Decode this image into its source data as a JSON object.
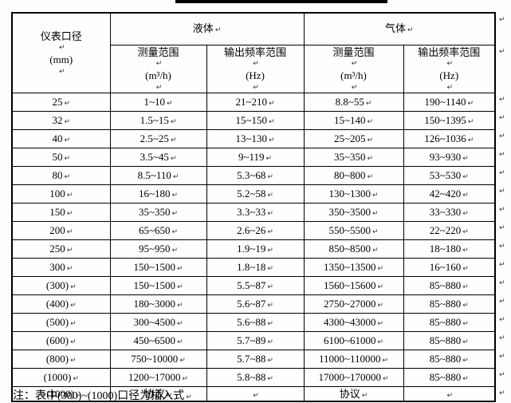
{
  "formatting_mark": "↵",
  "colors": {
    "border": "#000000",
    "text": "#000000",
    "mark_gray": "#333333",
    "title_rule": "#000000",
    "background": "#fefefe"
  },
  "table": {
    "header": {
      "diameter_label": "仪表口径",
      "diameter_unit": "(mm)",
      "liquid_group": "液体",
      "gas_group": "气体",
      "measure_label": "测量范围",
      "measure_unit": "(m³/h)",
      "freq_label": "输出频率范围",
      "freq_unit": "(Hz)"
    },
    "rows": [
      [
        "25",
        "1~10",
        "21~210",
        "8.8~55",
        "190~1140"
      ],
      [
        "32",
        "1.5~15",
        "15~150",
        "15~140",
        "150~1395"
      ],
      [
        "40",
        "2.5~25",
        "13~130",
        "25~205",
        "126~1036"
      ],
      [
        "50",
        "3.5~45",
        "9~119",
        "35~350",
        "93~930"
      ],
      [
        "80",
        "8.5~110",
        "5.3~68",
        "80~800",
        "53~530"
      ],
      [
        "100",
        "16~180",
        "5.2~58",
        "130~1300",
        "42~420"
      ],
      [
        "150",
        "35~350",
        "3.3~33",
        "350~3500",
        "33~330"
      ],
      [
        "200",
        "65~650",
        "2.6~26",
        "550~5500",
        "22~220"
      ],
      [
        "250",
        "95~950",
        "1.9~19",
        "850~8500",
        "18~180"
      ],
      [
        "300",
        "150~1500",
        "1.8~18",
        "1350~13500",
        "16~160"
      ],
      [
        "(300)",
        "150~1500",
        "5.5~87",
        "1560~15600",
        "85~880"
      ],
      [
        "(400)",
        "180~3000",
        "5.6~87",
        "2750~27000",
        "85~880"
      ],
      [
        "(500)",
        "300~4500",
        "5.6~88",
        "4300~43000",
        "85~880"
      ],
      [
        "(600)",
        "450~6500",
        "5.7~89",
        "6100~61000",
        "85~880"
      ],
      [
        "(800)",
        "750~10000",
        "5.7~88",
        "11000~110000",
        "85~880"
      ],
      [
        "(1000)",
        "1200~17000",
        "5.8~88",
        "17000~170000",
        "85~880"
      ],
      [
        ">(1000)",
        "协议",
        "",
        "协议",
        ""
      ]
    ]
  },
  "note": "注：表中(300)~(1000)口径为插入式"
}
